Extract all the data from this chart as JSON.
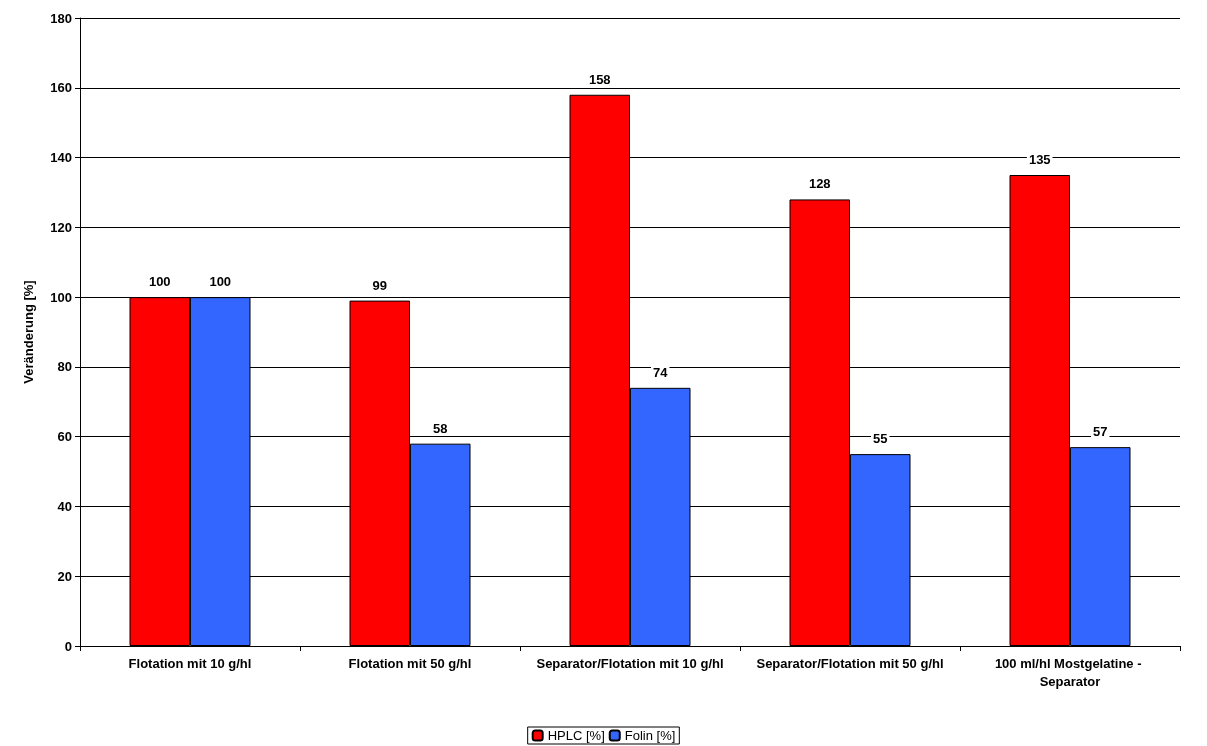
{
  "chart_data": {
    "type": "bar",
    "ylabel": "Veränderung [%]",
    "categories": [
      "Flotation mit 10 g/hl",
      "Flotation mit 50 g/hl",
      "Separator/Flotation mit 10 g/hl",
      "Separator/Flotation mit 50 g/hl",
      "100 ml/hl Mostgelatine - Separator"
    ],
    "series": [
      {
        "name": "HPLC [%]",
        "color": "#ff0000",
        "values": [
          100,
          99,
          158,
          128,
          135
        ]
      },
      {
        "name": "Folin [%]",
        "color": "#3366ff",
        "values": [
          100,
          58,
          74,
          55,
          57
        ]
      }
    ],
    "ylim": [
      0,
      180
    ],
    "yticks": [
      0,
      20,
      40,
      60,
      80,
      100,
      120,
      140,
      160,
      180
    ],
    "grid": "y",
    "legend": "bottom",
    "data_labels": true
  }
}
